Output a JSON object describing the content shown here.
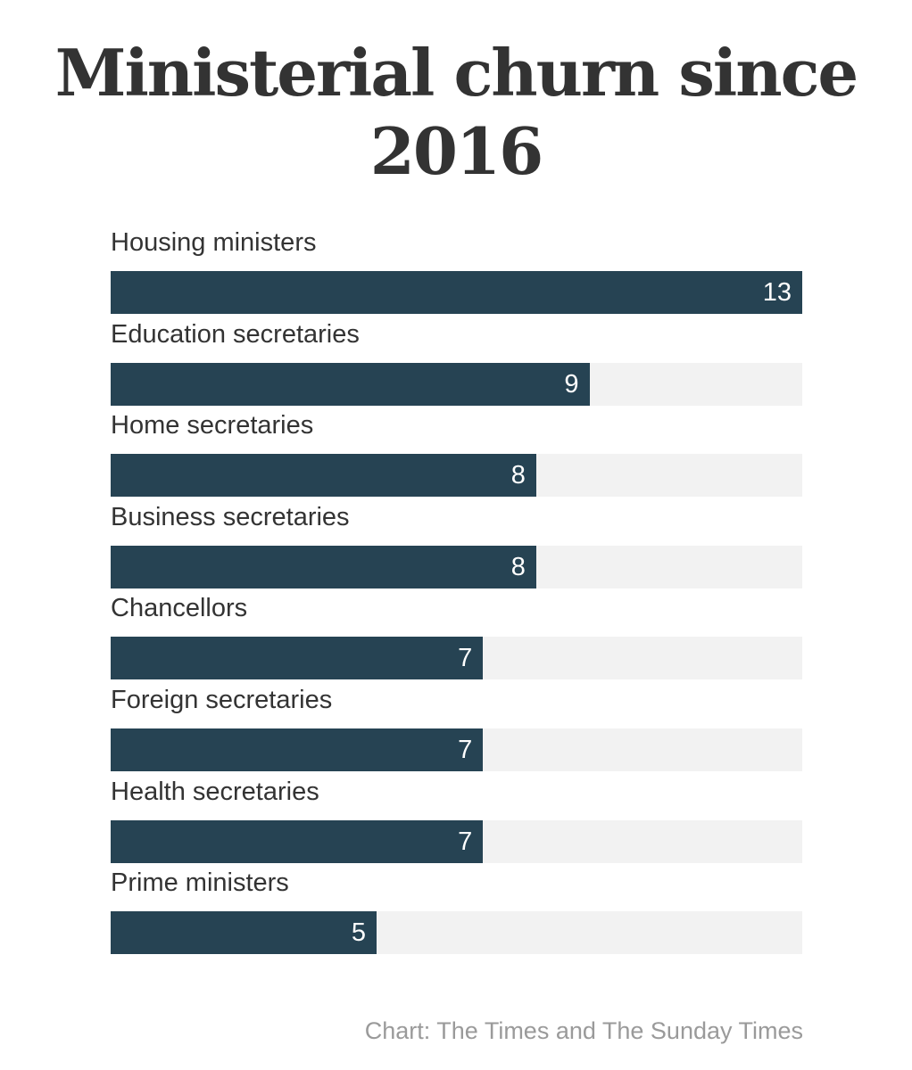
{
  "chart_data": {
    "type": "bar",
    "orientation": "horizontal",
    "title": "Ministerial churn since 2016",
    "categories": [
      "Housing ministers",
      "Education secretaries",
      "Home secretaries",
      "Business secretaries",
      "Chancellors",
      "Foreign secretaries",
      "Health secretaries",
      "Prime ministers"
    ],
    "values": [
      13,
      9,
      8,
      8,
      7,
      7,
      7,
      5
    ],
    "xlim": [
      0,
      13
    ],
    "data_labels": "inside-end",
    "grid": false,
    "legend": "none",
    "colors": {
      "bar": "#264353",
      "track": "#f2f2f2",
      "value_label": "#ffffff",
      "text": "#333333",
      "source": "#9a9a9a"
    },
    "source": "Chart: The Times and The Sunday Times"
  }
}
